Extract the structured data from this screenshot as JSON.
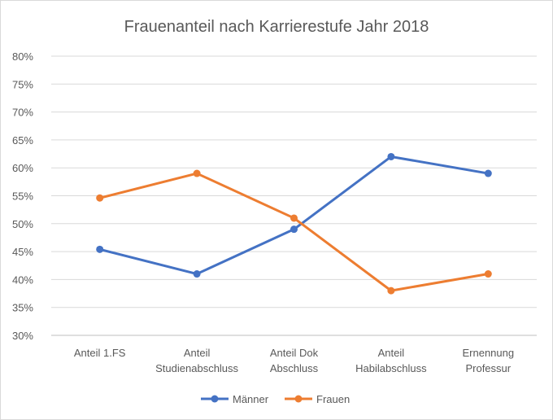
{
  "chart_data": {
    "type": "line",
    "title": "Frauenanteil nach Karrierestufe  Jahr 2018",
    "xlabel": "",
    "ylabel": "",
    "categories": [
      [
        "Anteil 1.FS"
      ],
      [
        "Anteil",
        "Studienabschluss"
      ],
      [
        "Anteil Dok",
        "Abschluss"
      ],
      [
        "Anteil",
        "Habilabschluss"
      ],
      [
        "Ernennung",
        "Professur"
      ]
    ],
    "ylim": [
      0.3,
      0.8
    ],
    "yticks": [
      "30%",
      "35%",
      "40%",
      "45%",
      "50%",
      "55%",
      "60%",
      "65%",
      "70%",
      "75%",
      "80%"
    ],
    "grid": true,
    "legend_position": "bottom",
    "series": [
      {
        "name": "Männer",
        "color": "#4472c4",
        "values": [
          0.454,
          0.41,
          0.49,
          0.62,
          0.59
        ]
      },
      {
        "name": "Frauen",
        "color": "#ed7d31",
        "values": [
          0.546,
          0.59,
          0.51,
          0.38,
          0.41
        ]
      }
    ]
  }
}
